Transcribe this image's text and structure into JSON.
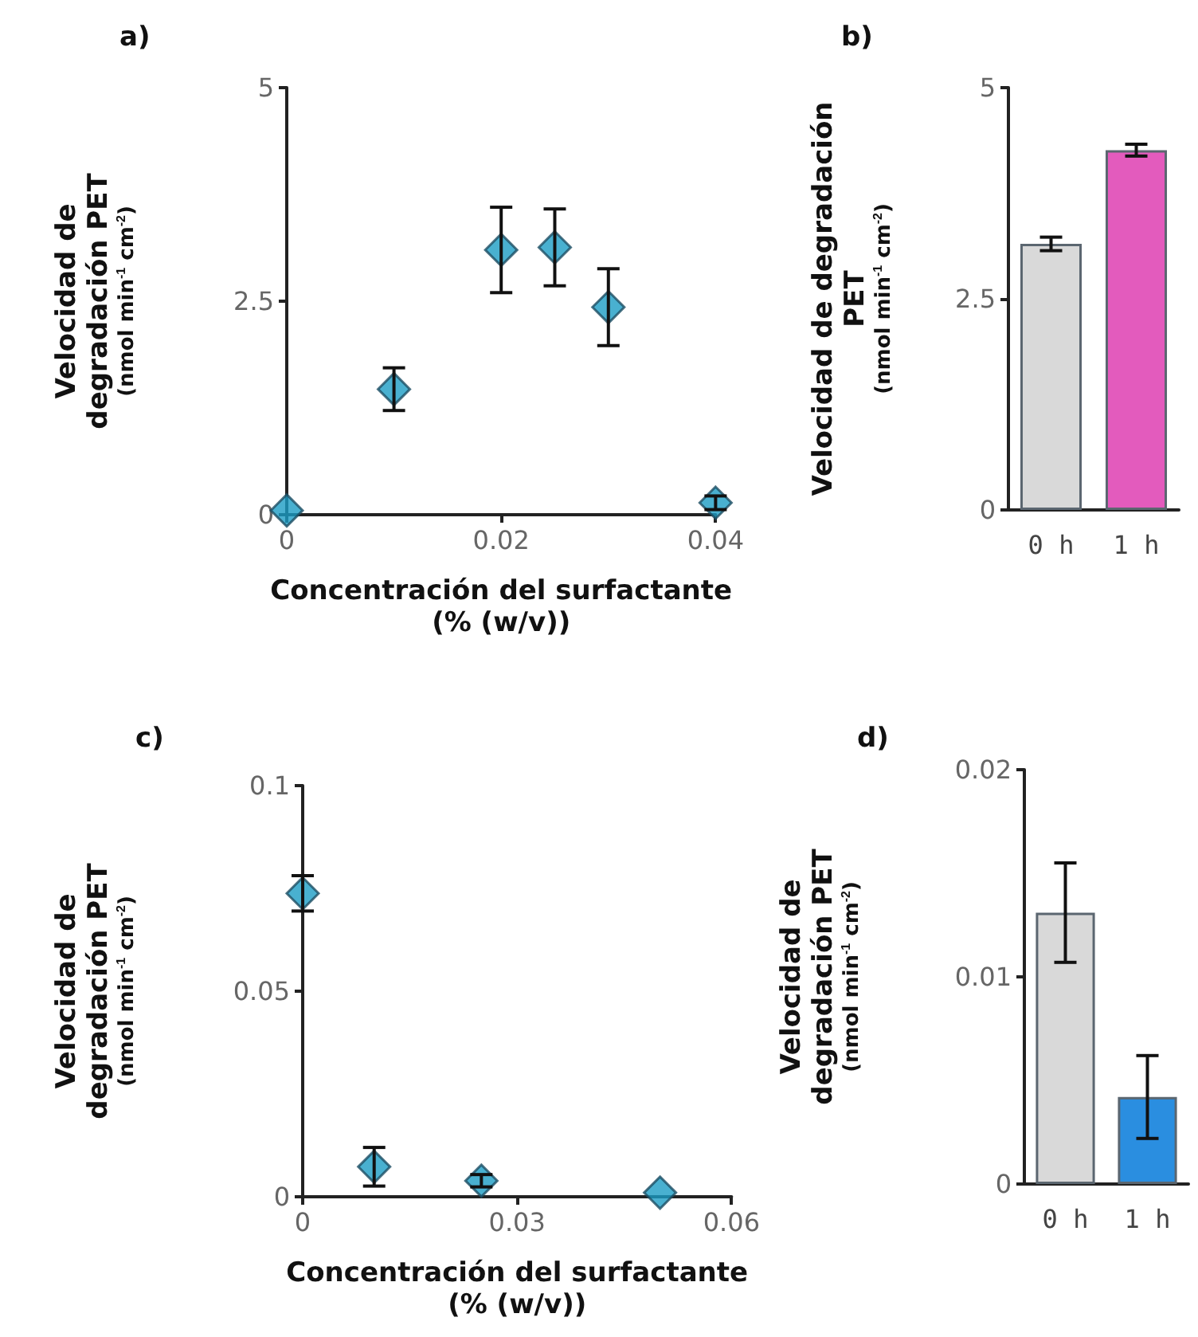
{
  "chart_data": [
    {
      "type": "scatter",
      "title": "a)",
      "xlabel": "Concentración del surfactante\n(% (w/v))",
      "ylabel": "Velocidad de\ndegradación PET\n(nmol min$^{-1}$ cm$^{-2}$)",
      "marker": "diamond",
      "color": "#1b9cc4",
      "x": [
        0,
        0.01,
        0.02,
        0.025,
        0.03,
        0.04
      ],
      "values": [
        0.05,
        1.47,
        3.1,
        3.13,
        2.43,
        0.14
      ],
      "errors": [
        null,
        0.25,
        0.5,
        0.45,
        0.45,
        0.08
      ],
      "xlim": [
        0,
        0.04
      ],
      "xticks": [
        0,
        0.02,
        0.04
      ],
      "ylim": [
        0,
        5
      ],
      "yticks": [
        0,
        2.5,
        5
      ]
    },
    {
      "type": "bar",
      "title": "b)",
      "ylabel": "Velocidad de degradación\nPET\n(nmol min$^{-1}$ cm$^{-2}$)",
      "categories": [
        "0 h",
        "1 h"
      ],
      "values": [
        3.15,
        4.26
      ],
      "errors": [
        0.08,
        0.07
      ],
      "colors": [
        "#d9d9d9",
        "#e35bbd"
      ],
      "ylim": [
        0,
        5
      ],
      "yticks": [
        0,
        2.5,
        5
      ]
    },
    {
      "type": "scatter",
      "title": "c)",
      "xlabel": "Concentración del surfactante\n(% (w/v))",
      "ylabel": "Velocidad de\ndegradación PET\n(nmol min$^{-1}$ cm$^{-2}$)",
      "marker": "diamond",
      "color": "#1b9cc4",
      "x": [
        0,
        0.01,
        0.025,
        0.05
      ],
      "values": [
        0.0738,
        0.0073,
        0.0039,
        0.001
      ],
      "errors": [
        0.0043,
        0.0047,
        0.0015,
        null
      ],
      "xlim": [
        0,
        0.06
      ],
      "xticks": [
        0,
        0.03,
        0.06
      ],
      "ylim": [
        0,
        0.1
      ],
      "yticks": [
        0,
        0.05,
        0.1
      ]
    },
    {
      "type": "bar",
      "title": "d)",
      "ylabel": "Velocidad de\ndegradación PET\n(nmol min$^{-1}$ cm$^{-2}$)",
      "categories": [
        "0 h",
        "1 h"
      ],
      "values": [
        0.0131,
        0.0042
      ],
      "errors": [
        0.0024,
        0.002
      ],
      "colors": [
        "#d9d9d9",
        "#2a8ee0"
      ],
      "ylim": [
        0,
        0.02
      ],
      "yticks": [
        0,
        0.01,
        0.02
      ]
    }
  ]
}
